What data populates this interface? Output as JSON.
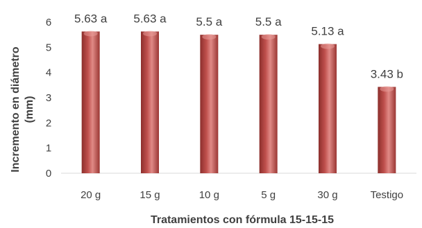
{
  "chart_data": {
    "type": "bar",
    "title": "",
    "xlabel": "Tratamientos con fórmula 15-15-15",
    "ylabel_lines": [
      "Incremento en diámetro",
      "(mm)"
    ],
    "categories": [
      "20 g",
      "15 g",
      "10 g",
      "5 g",
      "30 g",
      "Testigo"
    ],
    "values": [
      5.63,
      5.63,
      5.5,
      5.5,
      5.13,
      3.43
    ],
    "data_labels": [
      "5.63 a",
      "5.63 a",
      "5.5 a",
      "5.5 a",
      "5.13 a",
      "3.43 b"
    ],
    "ylim": [
      0,
      6
    ],
    "yticks": [
      "0",
      "1",
      "2",
      "3",
      "4",
      "5",
      "6"
    ],
    "grid": false,
    "legend": "none",
    "colors": {
      "bar": "#c0504d",
      "bar_dark": "#8c2f2c",
      "bar_light": "#e89a97",
      "text": "#404040",
      "axis": "#d9d9d9"
    }
  }
}
